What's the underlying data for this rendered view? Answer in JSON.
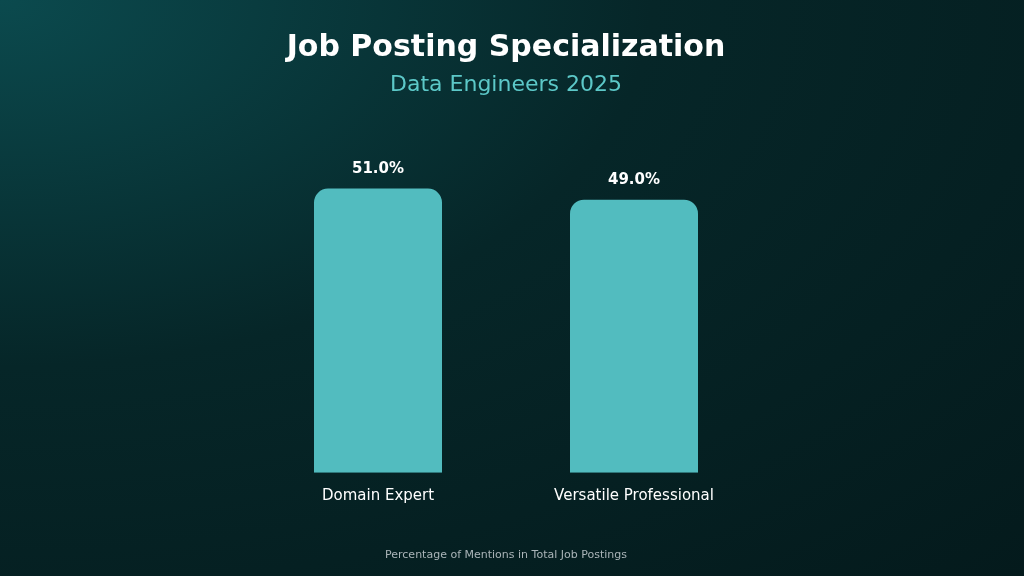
{
  "chart_data": {
    "type": "bar",
    "title": "Job Posting Specialization",
    "subtitle": "Data Engineers 2025",
    "xlabel": "Percentage of Mentions in Total Job Postings",
    "categories": [
      "Domain Expert",
      "Versatile Professional"
    ],
    "values": [
      51.0,
      49.0
    ],
    "value_labels": [
      "51.0%",
      "49.0%"
    ],
    "color": "#52bcbf",
    "grid": false,
    "legend": false
  }
}
